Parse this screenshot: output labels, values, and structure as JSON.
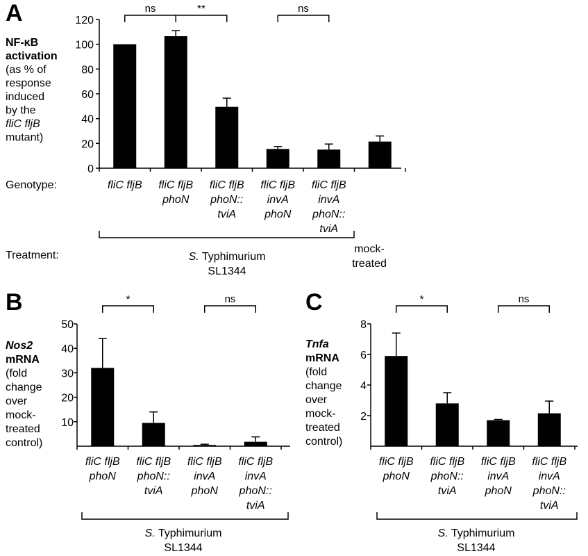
{
  "chart_data": [
    {
      "id": "A",
      "type": "bar",
      "panel_label": "A",
      "ylabel_lines": [
        {
          "text": "NF-κB",
          "style": "bold"
        },
        {
          "text": "activation",
          "style": "bold"
        },
        {
          "text": "(as % of",
          "style": "normal"
        },
        {
          "text": "response",
          "style": "normal"
        },
        {
          "text": "induced",
          "style": "normal"
        },
        {
          "text": "by the",
          "style": "normal"
        },
        {
          "parts": [
            {
              "text": "fliC fljB",
              "style": "italic"
            }
          ],
          "style": "normal"
        },
        {
          "text": "mutant)",
          "style": "normal"
        }
      ],
      "ylim": [
        0,
        120
      ],
      "yticks": [
        "0",
        "20",
        "40",
        "60",
        "80",
        "100",
        "120"
      ],
      "categories": [
        [
          "fliC fljB"
        ],
        [
          "fliC fljB",
          "phoN"
        ],
        [
          "fliC fljB",
          "phoN::",
          "tviA"
        ],
        [
          "fliC fljB",
          "invA",
          "phoN"
        ],
        [
          "fliC fljB",
          "invA",
          "phoN::",
          "tviA"
        ],
        []
      ],
      "values": [
        100,
        106.5,
        49.5,
        15.5,
        15,
        21.5
      ],
      "errors": [
        0,
        4.5,
        7,
        2,
        4.5,
        4.5
      ],
      "significance": [
        {
          "from": 0,
          "to": 1,
          "label": "ns"
        },
        {
          "from": 1,
          "to": 2,
          "label": "**"
        },
        {
          "from": 3,
          "to": 4,
          "label": "ns"
        }
      ],
      "row_labels": {
        "genotype": "Genotype:",
        "treatment": "Treatment:"
      },
      "group": {
        "line1_italic": "S.",
        "line1_rest": " Typhimurium",
        "line2": "SL1344"
      },
      "mock_label": [
        "mock-",
        "treated"
      ]
    },
    {
      "id": "B",
      "type": "bar",
      "panel_label": "B",
      "ylabel_lines": [
        {
          "parts": [
            {
              "text": "Nos2",
              "style": "bolditalic"
            }
          ],
          "style": "bold"
        },
        {
          "text": "mRNA",
          "style": "bold"
        },
        {
          "text": "(fold",
          "style": "normal"
        },
        {
          "text": "change",
          "style": "normal"
        },
        {
          "text": "over",
          "style": "normal"
        },
        {
          "text": "mock-",
          "style": "normal"
        },
        {
          "text": "treated",
          "style": "normal"
        },
        {
          "text": "control)",
          "style": "normal"
        }
      ],
      "ylim": [
        0,
        50
      ],
      "yticks": [
        "10",
        "20",
        "30",
        "40",
        "50"
      ],
      "categories": [
        [
          "fliC fljB",
          "phoN"
        ],
        [
          "fliC fljB",
          "phoN::",
          "tviA"
        ],
        [
          "fliC fljB",
          "invA",
          "phoN"
        ],
        [
          "fliC fljB",
          "invA",
          "phoN::",
          "tviA"
        ]
      ],
      "values": [
        32,
        9.5,
        0.5,
        1.8
      ],
      "errors": [
        12,
        4.5,
        0.3,
        2
      ],
      "significance": [
        {
          "from": 0,
          "to": 1,
          "label": "*"
        },
        {
          "from": 2,
          "to": 3,
          "label": "ns"
        }
      ],
      "group": {
        "line1_italic": "S.",
        "line1_rest": " Typhimurium",
        "line2": "SL1344"
      }
    },
    {
      "id": "C",
      "type": "bar",
      "panel_label": "C",
      "ylabel_lines": [
        {
          "parts": [
            {
              "text": "Tnfa",
              "style": "bolditalic"
            }
          ],
          "style": "bold"
        },
        {
          "text": "mRNA",
          "style": "bold"
        },
        {
          "text": "(fold",
          "style": "normal"
        },
        {
          "text": "change",
          "style": "normal"
        },
        {
          "text": "over",
          "style": "normal"
        },
        {
          "text": "mock-",
          "style": "normal"
        },
        {
          "text": "treated",
          "style": "normal"
        },
        {
          "text": "control)",
          "style": "normal"
        }
      ],
      "ylim": [
        0,
        8
      ],
      "yticks": [
        "2",
        "4",
        "6",
        "8"
      ],
      "categories": [
        [
          "fliC fljB",
          "phoN"
        ],
        [
          "fliC fljB",
          "phoN::",
          "tviA"
        ],
        [
          "fliC fljB",
          "invA",
          "phoN"
        ],
        [
          "fliC fljB",
          "invA",
          "phoN::",
          "tviA"
        ]
      ],
      "values": [
        5.9,
        2.8,
        1.7,
        2.15
      ],
      "errors": [
        1.5,
        0.7,
        0.05,
        0.8
      ],
      "significance": [
        {
          "from": 0,
          "to": 1,
          "label": "*"
        },
        {
          "from": 2,
          "to": 3,
          "label": "ns"
        }
      ],
      "group": {
        "line1_italic": "S.",
        "line1_rest": " Typhimurium",
        "line2": "SL1344"
      }
    }
  ]
}
